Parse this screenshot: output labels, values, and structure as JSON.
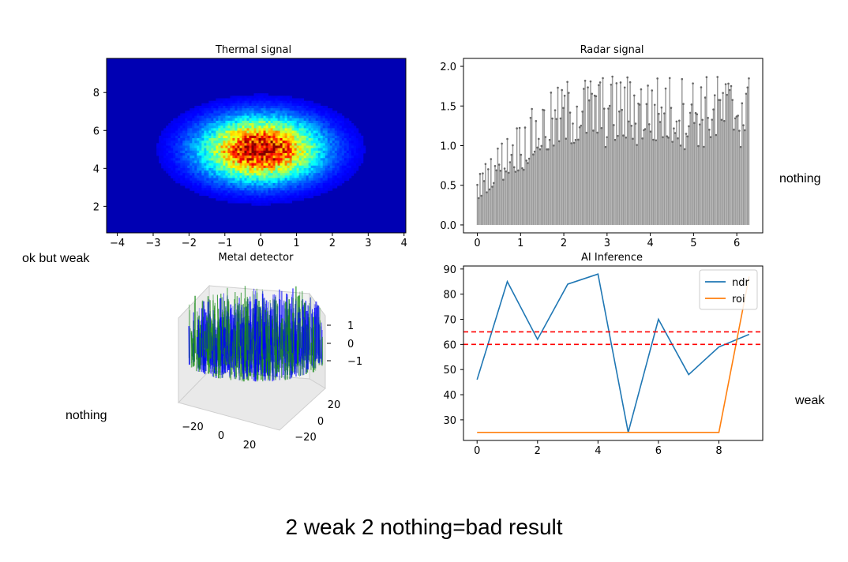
{
  "caption": "2 weak 2 nothing=bad result",
  "notes": {
    "thermal": "ok but weak",
    "radar": "nothing",
    "metal": "nothing",
    "ai": "weak"
  },
  "chart_data": [
    {
      "type": "heatmap",
      "title": "Thermal signal",
      "xlabel": "",
      "ylabel": "",
      "xlim": [
        -4.3,
        4.05
      ],
      "ylim": [
        0.6,
        9.8
      ],
      "xticks": [
        "−4",
        "−3",
        "−2",
        "−1",
        "0",
        "1",
        "2",
        "3",
        "4"
      ],
      "xtick_values": [
        -4,
        -3,
        -2,
        -1,
        0,
        1,
        2,
        3,
        4
      ],
      "yticks": [
        "2",
        "4",
        "6",
        "8"
      ],
      "ytick_values": [
        2,
        4,
        6,
        8
      ],
      "distribution": {
        "center_x": 0,
        "center_y": 5,
        "sigma_x": 1.0,
        "sigma_y": 1.0
      },
      "colormap": "jet",
      "grid": false
    },
    {
      "type": "bar",
      "title": "Radar signal",
      "xlabel": "",
      "ylabel": "",
      "xlim": [
        -0.32,
        6.6
      ],
      "ylim": [
        -0.1,
        2.1
      ],
      "xticks": [
        "0",
        "1",
        "2",
        "3",
        "4",
        "5",
        "6"
      ],
      "xtick_values": [
        0,
        1,
        2,
        3,
        4,
        5,
        6
      ],
      "yticks": [
        "0.0",
        "0.5",
        "1.0",
        "1.5",
        "2.0"
      ],
      "ytick_values": [
        0,
        0.5,
        1.0,
        1.5,
        2.0
      ],
      "x_range": [
        0,
        6.28
      ],
      "n_bars": 200,
      "value_range": "random noise, roughly 0.1–2.0 rising from ~0.5 at x=0 to ~1.9 near x=2",
      "bar_color": "#999999",
      "grid": false
    },
    {
      "type": "surface3d",
      "title": "Metal detector",
      "xlabel": "",
      "ylabel": "",
      "zlabel": "",
      "xticks": [
        "−20",
        "0",
        "20"
      ],
      "yticks": [
        "20",
        "0",
        "−20"
      ],
      "zticks": [
        "1",
        "0",
        "−1"
      ],
      "colors": [
        "#0000ff",
        "#1a8c1a"
      ]
    },
    {
      "type": "line",
      "title": "AI Inference",
      "xlabel": "",
      "ylabel": "",
      "x": [
        0,
        1,
        2,
        3,
        4,
        5,
        6,
        7,
        8,
        9
      ],
      "xlim": [
        -0.45,
        9.45
      ],
      "ylim": [
        21.8,
        91.2
      ],
      "xticks": [
        "0",
        "2",
        "4",
        "6",
        "8"
      ],
      "xtick_values": [
        0,
        2,
        4,
        6,
        8
      ],
      "yticks": [
        "30",
        "40",
        "50",
        "60",
        "70",
        "80",
        "90"
      ],
      "ytick_values": [
        30,
        40,
        50,
        60,
        70,
        80,
        90
      ],
      "series": [
        {
          "name": "ndr",
          "color": "#1f77b4",
          "values": [
            46,
            85,
            62,
            84,
            88,
            25,
            70,
            48,
            59,
            64
          ]
        },
        {
          "name": "roi",
          "color": "#ff7f0e",
          "values": [
            25,
            25,
            25,
            25,
            25,
            25,
            25,
            25,
            25,
            87
          ]
        }
      ],
      "hlines": [
        {
          "y": 65,
          "color": "#ff0000",
          "style": "dashed"
        },
        {
          "y": 60,
          "color": "#ff0000",
          "style": "dashed"
        }
      ],
      "legend": "top-right",
      "grid": false
    }
  ]
}
